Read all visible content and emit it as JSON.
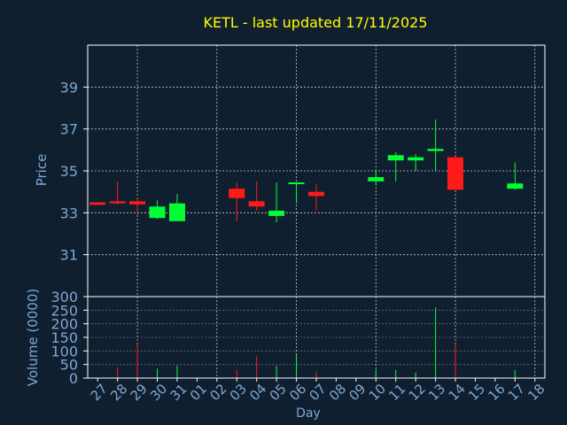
{
  "chart_data": {
    "type": "candlestick",
    "title": "KETL - last updated 17/11/2025",
    "colors": {
      "background": "#0f1f30",
      "plot_border": "#ffffff",
      "grid": "#ffffff",
      "title": "#ffff00",
      "axis_text": "#7fa7d0",
      "up": "#00ff33",
      "down": "#ff1a1a"
    },
    "x_axis": {
      "label": "Day",
      "ticks": [
        "27",
        "28",
        "29",
        "30",
        "31",
        "01",
        "02",
        "03",
        "04",
        "05",
        "06",
        "07",
        "08",
        "09",
        "10",
        "11",
        "12",
        "13",
        "14",
        "15",
        "16",
        "17",
        "18"
      ]
    },
    "price_panel": {
      "ylabel": "Price",
      "ylim": [
        29.0,
        41.0
      ],
      "yticks": [
        31,
        33,
        35,
        37,
        39
      ],
      "candles": [
        {
          "day": "27",
          "open": 33.5,
          "high": 33.5,
          "low": 33.35,
          "close": 33.38
        },
        {
          "day": "28",
          "open": 33.55,
          "high": 34.5,
          "low": 33.4,
          "close": 33.45
        },
        {
          "day": "29",
          "open": 33.55,
          "high": 33.7,
          "low": 32.9,
          "close": 33.4
        },
        {
          "day": "30",
          "open": 32.75,
          "high": 33.6,
          "low": 32.7,
          "close": 33.3
        },
        {
          "day": "31",
          "open": 32.6,
          "high": 33.9,
          "low": 32.6,
          "close": 33.45
        },
        {
          "day": "03",
          "open": 34.15,
          "high": 34.45,
          "low": 32.6,
          "close": 33.7
        },
        {
          "day": "04",
          "open": 33.55,
          "high": 34.5,
          "low": 33.1,
          "close": 33.3
        },
        {
          "day": "05",
          "open": 32.85,
          "high": 34.45,
          "low": 32.55,
          "close": 33.1
        },
        {
          "day": "06",
          "open": 34.4,
          "high": 34.45,
          "low": 33.45,
          "close": 34.45
        },
        {
          "day": "07",
          "open": 34.0,
          "high": 34.4,
          "low": 33.1,
          "close": 33.8
        },
        {
          "day": "10",
          "open": 34.5,
          "high": 35.0,
          "low": 34.3,
          "close": 34.7
        },
        {
          "day": "11",
          "open": 35.5,
          "high": 35.9,
          "low": 34.5,
          "close": 35.75
        },
        {
          "day": "12",
          "open": 35.5,
          "high": 35.8,
          "low": 35.0,
          "close": 35.65
        },
        {
          "day": "13",
          "open": 35.95,
          "high": 37.45,
          "low": 35.0,
          "close": 36.05
        },
        {
          "day": "14",
          "open": 35.65,
          "high": 35.7,
          "low": 34.1,
          "close": 34.1
        },
        {
          "day": "17",
          "open": 34.15,
          "high": 35.4,
          "low": 34.1,
          "close": 34.4
        }
      ]
    },
    "volume_panel": {
      "ylabel": "Volume (0000)",
      "ylim": [
        0,
        300
      ],
      "yticks": [
        0,
        50,
        100,
        150,
        200,
        250,
        300
      ],
      "bars": [
        {
          "day": "28",
          "value": 40,
          "direction": "down"
        },
        {
          "day": "29",
          "value": 125,
          "direction": "down"
        },
        {
          "day": "30",
          "value": 35,
          "direction": "up"
        },
        {
          "day": "31",
          "value": 45,
          "direction": "up"
        },
        {
          "day": "03",
          "value": 30,
          "direction": "down"
        },
        {
          "day": "04",
          "value": 80,
          "direction": "down"
        },
        {
          "day": "05",
          "value": 45,
          "direction": "up"
        },
        {
          "day": "06",
          "value": 85,
          "direction": "up"
        },
        {
          "day": "07",
          "value": 25,
          "direction": "down"
        },
        {
          "day": "10",
          "value": 30,
          "direction": "up"
        },
        {
          "day": "11",
          "value": 30,
          "direction": "up"
        },
        {
          "day": "12",
          "value": 20,
          "direction": "up"
        },
        {
          "day": "13",
          "value": 260,
          "direction": "up"
        },
        {
          "day": "14",
          "value": 125,
          "direction": "down"
        },
        {
          "day": "17",
          "value": 30,
          "direction": "up"
        }
      ]
    }
  }
}
